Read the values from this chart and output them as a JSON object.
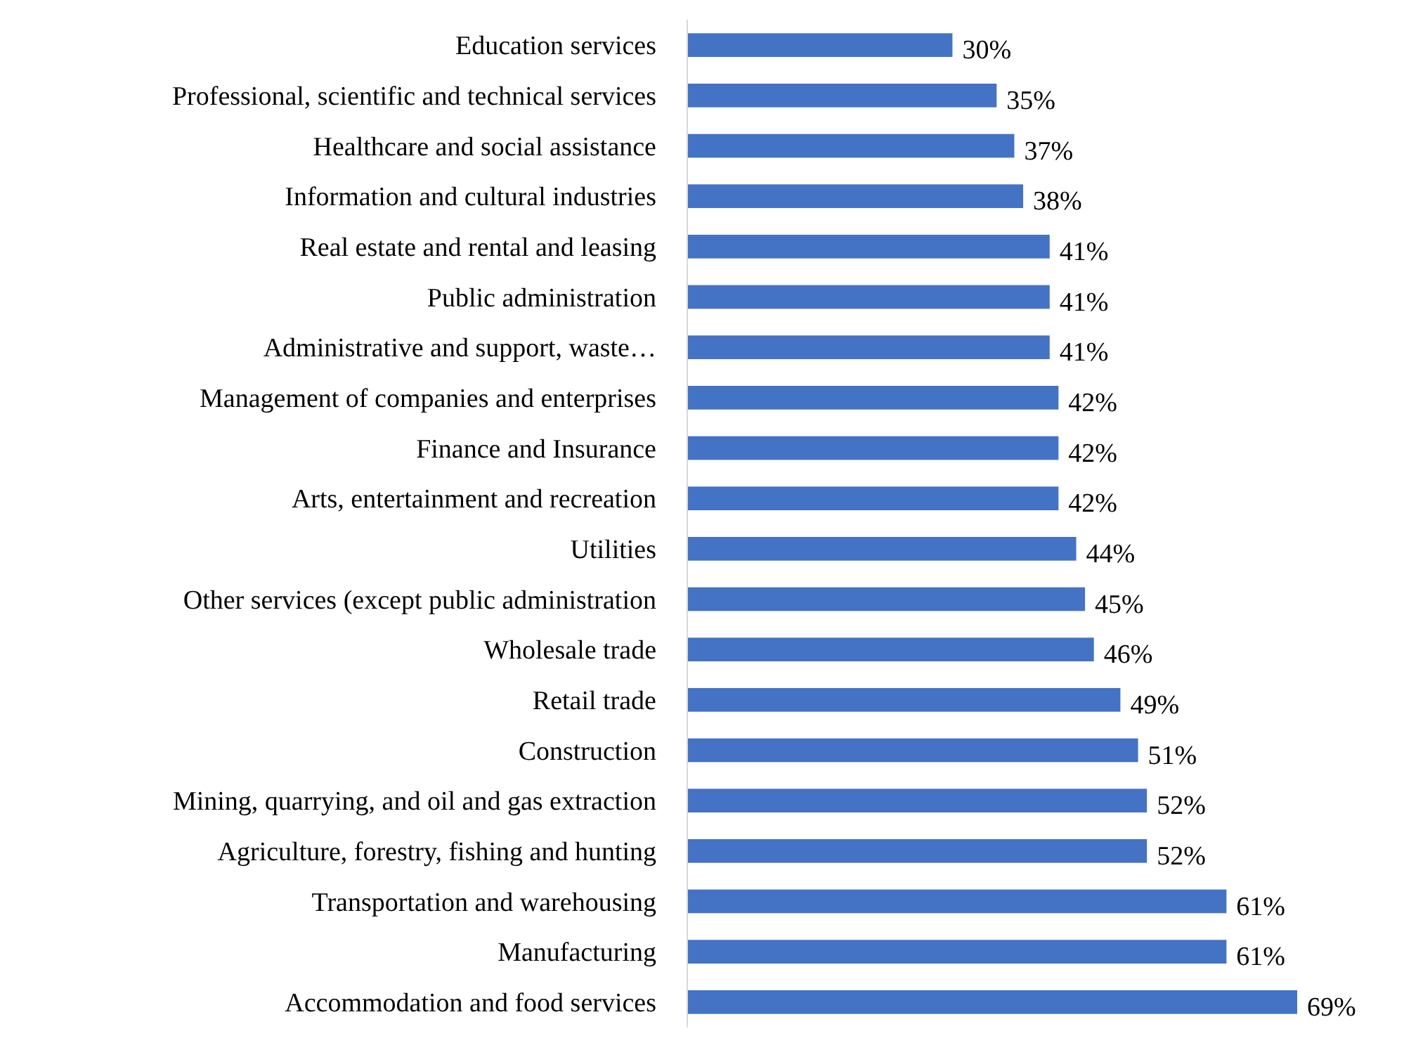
{
  "chart_data": {
    "type": "bar",
    "orientation": "horizontal",
    "categories": [
      "Education services",
      "Professional, scientific and technical services",
      "Healthcare and social assistance",
      "Information and cultural industries",
      "Real estate and rental and leasing",
      "Public administration",
      "Administrative and support, waste…",
      "Management of companies and enterprises",
      "Finance and Insurance",
      "Arts, entertainment and recreation",
      "Utilities",
      "Other services (except public administration",
      "Wholesale trade",
      "Retail trade",
      "Construction",
      "Mining, quarrying, and oil and gas extraction",
      "Agriculture, forestry, fishing and hunting",
      "Transportation and warehousing",
      "Manufacturing",
      "Accommodation and food services"
    ],
    "values": [
      30,
      35,
      37,
      38,
      41,
      41,
      41,
      42,
      42,
      42,
      44,
      45,
      46,
      49,
      51,
      52,
      52,
      61,
      61,
      69
    ],
    "value_labels": [
      "30%",
      "35%",
      "37%",
      "38%",
      "41%",
      "41%",
      "41%",
      "42%",
      "42%",
      "42%",
      "44%",
      "45%",
      "46%",
      "49%",
      "51%",
      "52%",
      "52%",
      "61%",
      "61%",
      "69%"
    ],
    "color": "#4472c4"
  }
}
